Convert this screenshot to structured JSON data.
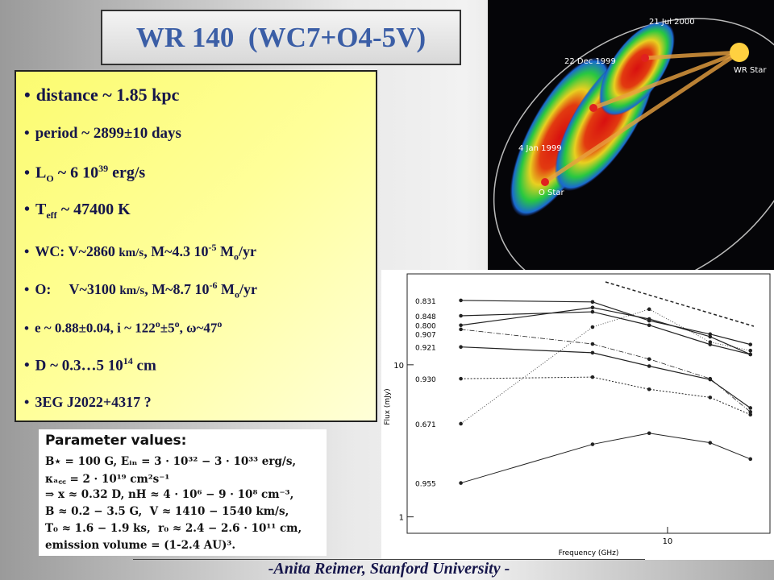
{
  "title": "WR 140  (WC7+O4-5V)",
  "bullets": [
    [
      "distance ~ 1.85 kpc"
    ],
    [
      "period ~ 2899±10 days"
    ],
    [
      "L",
      "O",
      " ~ 6 10",
      "39",
      " erg/s"
    ],
    [
      "T",
      "eff",
      " ~ 47400 K"
    ],
    [
      "WC: V~2860 ",
      "km/s",
      ", M~4.3 10",
      "-5",
      " M",
      "o",
      "/yr"
    ],
    [
      "O:     V~3100 ",
      "km/s",
      ", M~8.7 10",
      "-6",
      " M",
      "o",
      "/yr"
    ],
    [
      "e ~ 0.88±0.04, i ~ 122",
      "o",
      "±5",
      "o",
      ", ω~47",
      "o"
    ],
    [
      "D ~ 0.3…5 10",
      "14",
      " cm"
    ],
    [
      "3EG J2022+4317 ?"
    ]
  ],
  "orbit_figure": {
    "labels": [
      "21 Jul 2000",
      "22 Dec 1999",
      "4 Jan 1999",
      "WR Star",
      "O Star"
    ]
  },
  "parameters": {
    "heading": "Parameter values:",
    "lines": [
      "B⋆ = 100 G, Eᵢₙ = 3 · 10³² − 3 · 10³³ erg/s,",
      "κₐ꜀꜀ = 2 · 10¹⁹ cm²s⁻¹",
      "⇒ x ≈ 0.32 D, nH ≈ 4 · 10⁶ − 9 · 10⁸ cm⁻³,",
      "B ≈ 0.2 − 3.5 G,  V ≈ 1410 − 1540 km/s,",
      "T₀ ≈ 1.6 − 1.9 ks,  r₀ ≈ 2.4 − 2.6 · 10¹¹ cm,",
      "emission volume = (1-2.4 AU)³."
    ]
  },
  "chart_data": {
    "type": "line",
    "x_label": "Frequency (GHz)",
    "y_label": "Flux (mJy)",
    "x": [
      1.4,
      4.9,
      8.4,
      15,
      22
    ],
    "series": [
      {
        "name": "0.831",
        "values": [
          26.5,
          25.9,
          19.5,
          15.9,
          13.6
        ]
      },
      {
        "name": "0.848",
        "values": [
          21.0,
          22.3,
          18.2,
          13.6,
          11.7
        ]
      },
      {
        "name": "0.800",
        "values": [
          18.2,
          23.8,
          20.0,
          15.3,
          11.7
        ]
      },
      {
        "name": "0.907",
        "values": [
          17.1,
          13.7,
          10.9,
          8.1,
          4.9
        ]
      },
      {
        "name": "0.921",
        "values": [
          13.1,
          12.0,
          9.8,
          8.0,
          5.2
        ]
      },
      {
        "name": "0.930",
        "values": [
          8.1,
          8.3,
          6.9,
          6.1,
          4.7
        ]
      },
      {
        "name": "0.671",
        "values": [
          4.1,
          17.7,
          23.2,
          14.1,
          12.4
        ]
      },
      {
        "name": "0.955",
        "values": [
          1.67,
          3.0,
          3.55,
          3.07,
          2.4
        ]
      }
    ],
    "xlim": [
      0.84,
      26.5
    ],
    "ylim": [
      0.78,
      39.6
    ],
    "xticks": [
      10
    ],
    "yticks": [
      1,
      10
    ],
    "log_x": true,
    "log_y": true,
    "color": "#222222"
  },
  "footer": "-Anita Reimer, Stanford University -"
}
